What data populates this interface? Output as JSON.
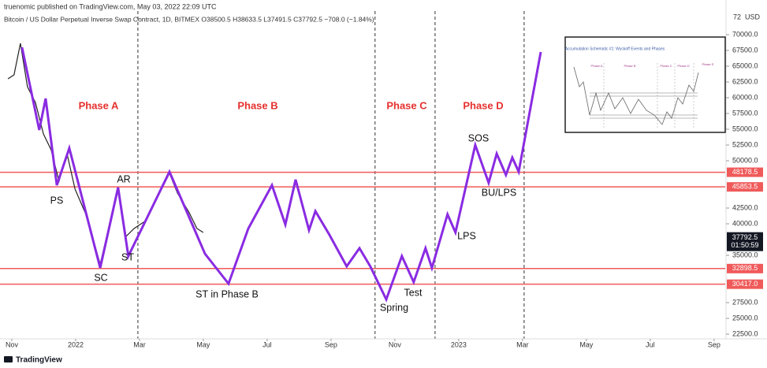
{
  "header": {
    "publisher": "truenomic published on TradingView.com, May 03, 2022 22:09 UTC",
    "symbol": "Bitcoin / US Dollar Perpetual Inverse Swap Contract, 1D, BITMEX  O38500.5  H38633.5  L37491.5  C37792.5  −708.0 (−1.84%)"
  },
  "chart_data": {
    "type": "line",
    "ylim": [
      21750,
      75500
    ],
    "yticks": [
      {
        "value": 70000,
        "label": "70000.0"
      },
      {
        "value": 67500,
        "label": "67500.0"
      },
      {
        "value": 65000,
        "label": "65000.0"
      },
      {
        "value": 62500,
        "label": "62500.0"
      },
      {
        "value": 60000,
        "label": "60000.0"
      },
      {
        "value": 57500,
        "label": "57500.0"
      },
      {
        "value": 55000,
        "label": "55000.0"
      },
      {
        "value": 52500,
        "label": "52500.0"
      },
      {
        "value": 50000,
        "label": "50000.0"
      },
      {
        "value": 42500,
        "label": "42500.0"
      },
      {
        "value": 40000,
        "label": "40000.0"
      },
      {
        "value": 35000,
        "label": "35000.0"
      },
      {
        "value": 27500,
        "label": "27500.0"
      },
      {
        "value": 25000,
        "label": "25000.0"
      },
      {
        "value": 22500,
        "label": "22500.0"
      }
    ],
    "y_unit_top": "72",
    "y_unit": "USD",
    "xlim": [
      -0.37,
      22.35
    ],
    "xticks": [
      {
        "value": 0,
        "label": "Nov"
      },
      {
        "value": 2,
        "label": "2022"
      },
      {
        "value": 4,
        "label": "Mar"
      },
      {
        "value": 6,
        "label": "May"
      },
      {
        "value": 8,
        "label": "Jul"
      },
      {
        "value": 10,
        "label": "Sep"
      },
      {
        "value": 12,
        "label": "Nov"
      },
      {
        "value": 14,
        "label": "2023"
      },
      {
        "value": 16,
        "label": "Mar"
      },
      {
        "value": 18,
        "label": "May"
      },
      {
        "value": 20,
        "label": "Jul"
      },
      {
        "value": 22,
        "label": "Sep"
      }
    ],
    "series": [
      {
        "color": "#222222",
        "x": [
          -0.12,
          0.07,
          0.27,
          0.49,
          0.74,
          0.99,
          1.23,
          1.48,
          1.73,
          1.98,
          2.3,
          2.59,
          2.77,
          3.09,
          3.33,
          3.58,
          3.83,
          4.2,
          4.57,
          4.94,
          5.19,
          5.56,
          5.8,
          6.0
        ],
        "values": [
          63000,
          63625,
          68625,
          61750,
          59250,
          54250,
          51750,
          46750,
          51125,
          45500,
          41750,
          36750,
          33625,
          40500,
          45750,
          38000,
          39250,
          40500,
          44250,
          48000,
          44875,
          41750,
          39250,
          38625
        ]
      },
      {
        "color": "#8a2be2",
        "x": [
          0.32,
          0.86,
          1.06,
          1.41,
          1.8,
          2.77,
          3.33,
          3.65,
          4.94,
          6.05,
          6.79,
          7.41,
          8.15,
          8.57,
          8.89,
          9.31,
          9.51,
          9.95,
          10.49,
          10.89,
          11.23,
          11.73,
          12.22,
          12.59,
          12.96,
          13.16,
          13.65,
          13.9,
          14.52,
          14.94,
          15.19,
          15.48,
          15.68,
          15.88,
          16.57
        ],
        "values": [
          68000,
          54875,
          59875,
          46125,
          52000,
          33000,
          45750,
          34875,
          48250,
          35250,
          30500,
          39250,
          46125,
          39875,
          47000,
          39000,
          42000,
          38250,
          33250,
          36125,
          33250,
          28000,
          34875,
          30750,
          36125,
          33000,
          41500,
          38625,
          52500,
          46500,
          51125,
          47750,
          50500,
          48250,
          67250
        ]
      }
    ],
    "levels": [
      48178.5,
      45853.5,
      32898.5,
      {
        "value": 30417,
        "label": "30417.0"
      }
    ],
    "level_color": "#f05a5a",
    "last_price": 37792.5,
    "countdown": "01:50:59",
    "dividers": [
      3.95,
      11.38,
      13.26,
      16.05
    ],
    "phases": [
      "Phase A",
      "Phase B",
      "Phase C",
      "Phase D"
    ],
    "events": [
      "PS",
      "AR",
      "ST",
      "SC",
      "ST in Phase B",
      "Spring",
      "Test",
      "LPS",
      "SOS",
      "BU/LPS"
    ]
  },
  "inset": {
    "title": "Accumulation Schematic #1: Wyckoff Events and Phases",
    "phases": [
      "Phase A",
      "Phase B",
      "Phase C",
      "Phase D",
      "Phase E"
    ]
  },
  "footer": {
    "brand": "TradingView"
  }
}
